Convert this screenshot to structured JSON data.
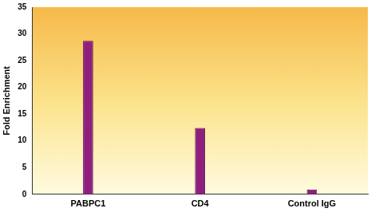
{
  "chart_data": {
    "type": "bar",
    "y_label": "Fold Enrichment",
    "categories": [
      "PABPC1",
      "CD4",
      "Control IgG"
    ],
    "values": [
      28.7,
      12.4,
      0.9
    ],
    "color": "#8e1f7e",
    "ylim": [
      0,
      35
    ],
    "yticks": [
      0,
      5,
      10,
      15,
      20,
      25,
      30,
      35
    ],
    "grid": false
  }
}
